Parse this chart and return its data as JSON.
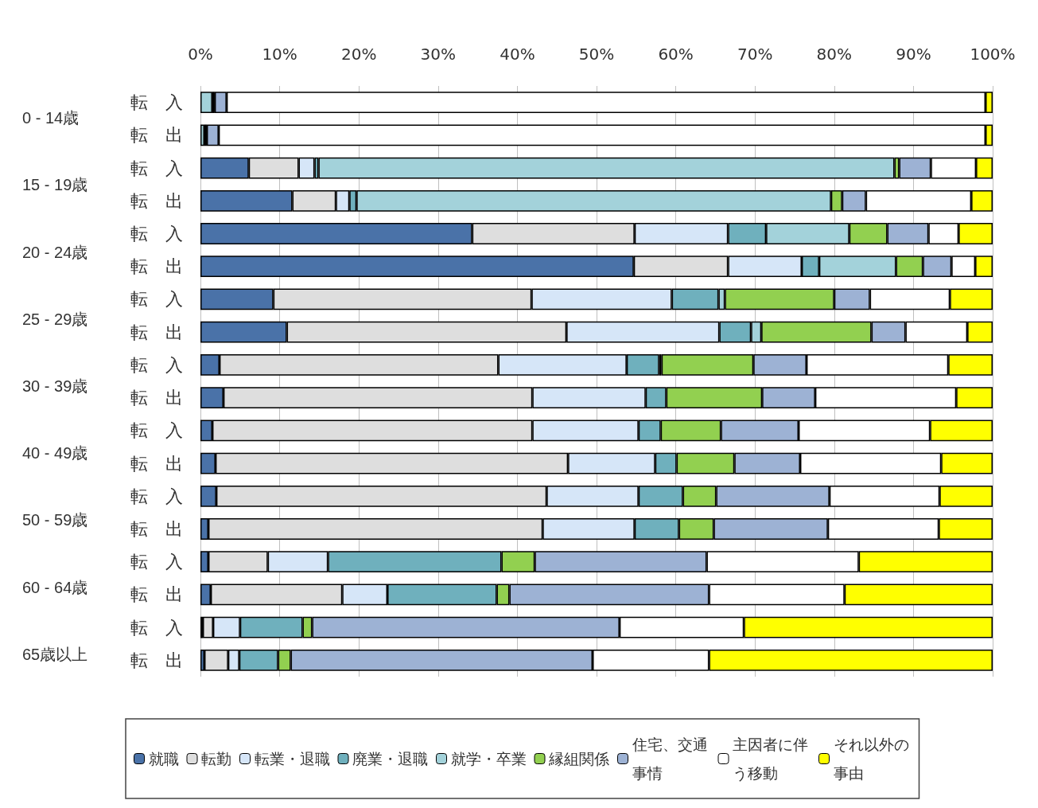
{
  "chart_data": {
    "type": "bar",
    "orientation": "horizontal",
    "stacked": true,
    "categories": [
      "転　入",
      "転　出",
      "転　入",
      "転　出",
      "転　入",
      "転　出",
      "転　入",
      "転　出",
      "転　入",
      "転　出",
      "転　入",
      "転　出",
      "転　入",
      "転　出",
      "転　入",
      "転　出",
      "転　入",
      "転　出"
    ],
    "annotations": [
      "0 - 14歳",
      "15 - 19歳",
      "20 - 24歳",
      "25 - 29歳",
      "30 - 39歳",
      "40 - 49歳",
      "50 - 59歳",
      "60 - 64歳",
      "65歳以上"
    ],
    "series": [
      {
        "name": "就職",
        "color": "#4a72a8",
        "values": [
          0,
          0,
          6.1,
          11.6,
          34.3,
          54.7,
          9.2,
          10.9,
          2.4,
          2.9,
          1.5,
          1.9,
          2.0,
          1.0,
          1.0,
          1.3,
          0.3,
          0.5
        ]
      },
      {
        "name": "転勤",
        "color": "#dedede",
        "values": [
          0,
          0,
          6.3,
          5.5,
          20.5,
          11.9,
          32.6,
          35.3,
          35.2,
          39.0,
          40.4,
          44.5,
          41.7,
          42.2,
          7.5,
          16.6,
          1.3,
          3.0
        ]
      },
      {
        "name": "転業・退職",
        "color": "#d6e6f8",
        "values": [
          0,
          0,
          2.0,
          1.7,
          11.8,
          9.3,
          17.7,
          19.3,
          16.2,
          14.3,
          13.4,
          11.0,
          11.6,
          11.6,
          7.6,
          5.7,
          3.4,
          1.4
        ]
      },
      {
        "name": "廃業・退職",
        "color": "#6fb0bd",
        "values": [
          0,
          0,
          0.5,
          0.9,
          4.8,
          2.2,
          5.9,
          4.0,
          4.1,
          2.6,
          2.8,
          2.7,
          5.6,
          5.6,
          21.9,
          13.8,
          7.9,
          4.9
        ]
      },
      {
        "name": "就学・卒業",
        "color": "#a3d2da",
        "values": [
          1.5,
          0.5,
          72.7,
          59.9,
          10.5,
          9.7,
          0.8,
          1.3,
          0.3,
          0,
          0,
          0,
          0,
          0,
          0,
          0,
          0,
          0
        ]
      },
      {
        "name": "縁組関係",
        "color": "#92d050",
        "values": [
          0.3,
          0.3,
          0.6,
          1.4,
          4.8,
          3.4,
          13.8,
          13.9,
          11.6,
          12.1,
          7.6,
          7.3,
          4.2,
          4.4,
          4.2,
          1.6,
          1.2,
          1.6
        ]
      },
      {
        "name": "住宅、交通事情",
        "color": "#9db2d4",
        "values": [
          1.5,
          1.5,
          4.0,
          3.0,
          5.2,
          3.6,
          4.5,
          4.3,
          6.7,
          6.7,
          9.8,
          8.3,
          14.3,
          14.4,
          21.7,
          25.2,
          38.8,
          38.1
        ]
      },
      {
        "name": "主因者に伴う移動",
        "color": "#ffffff",
        "values": [
          95.8,
          96.8,
          5.7,
          13.3,
          3.8,
          3.0,
          10.1,
          7.8,
          17.9,
          17.8,
          16.6,
          17.8,
          13.9,
          14.0,
          19.2,
          17.1,
          15.7,
          14.7
        ]
      },
      {
        "name": "それ以外の事由",
        "color": "#ffff00",
        "values": [
          0.9,
          0.9,
          2.1,
          2.7,
          4.3,
          2.2,
          5.4,
          3.2,
          5.6,
          4.6,
          7.9,
          6.5,
          6.7,
          6.8,
          16.9,
          18.7,
          31.4,
          35.8
        ]
      }
    ],
    "xlim": [
      0,
      100
    ],
    "xticks": [
      {
        "value": 0,
        "label": "0%"
      },
      {
        "value": 10,
        "label": "10%"
      },
      {
        "value": 20,
        "label": "20%"
      },
      {
        "value": 30,
        "label": "30%"
      },
      {
        "value": 40,
        "label": "40%"
      },
      {
        "value": 50,
        "label": "50%"
      },
      {
        "value": 60,
        "label": "60%"
      },
      {
        "value": 70,
        "label": "70%"
      },
      {
        "value": 80,
        "label": "80%"
      },
      {
        "value": 90,
        "label": "90%"
      },
      {
        "value": 100,
        "label": "100%"
      }
    ],
    "grid": "x",
    "legend": "bottom"
  }
}
